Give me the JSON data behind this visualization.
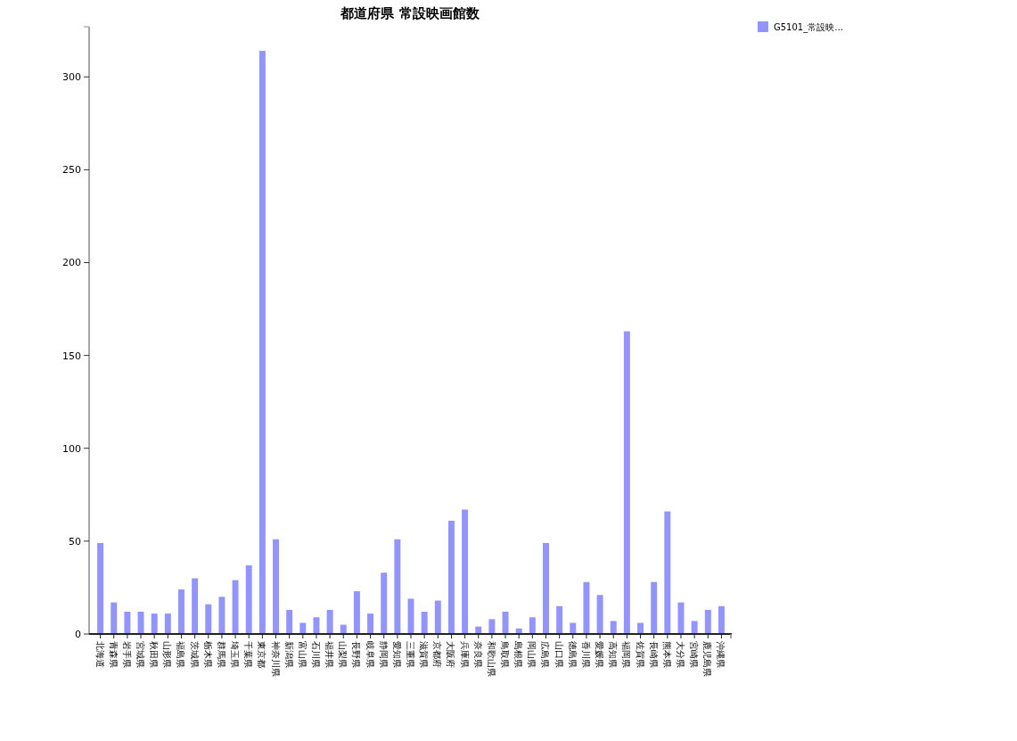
{
  "chart_data": {
    "type": "bar",
    "title": "都道府県 常設映画館数",
    "categories": [
      "北海道",
      "青森県",
      "岩手県",
      "宮城県",
      "秋田県",
      "山形県",
      "福島県",
      "茨城県",
      "栃木県",
      "群馬県",
      "埼玉県",
      "千葉県",
      "東京都",
      "神奈川県",
      "新潟県",
      "富山県",
      "石川県",
      "福井県",
      "山梨県",
      "長野県",
      "岐阜県",
      "静岡県",
      "愛知県",
      "三重県",
      "滋賀県",
      "京都府",
      "大阪府",
      "兵庫県",
      "奈良県",
      "和歌山県",
      "鳥取県",
      "島根県",
      "岡山県",
      "広島県",
      "山口県",
      "徳島県",
      "香川県",
      "愛媛県",
      "高知県",
      "福岡県",
      "佐賀県",
      "長崎県",
      "熊本県",
      "大分県",
      "宮崎県",
      "鹿児島県",
      "沖縄県"
    ],
    "series": [
      {
        "name": "G5101_常設映…",
        "color": "#9494ff",
        "values": [
          49,
          17,
          12,
          12,
          11,
          11,
          24,
          30,
          16,
          20,
          29,
          37,
          314,
          51,
          13,
          6,
          9,
          13,
          5,
          23,
          11,
          33,
          51,
          19,
          12,
          18,
          61,
          67,
          4,
          8,
          12,
          3,
          9,
          49,
          15,
          6,
          28,
          21,
          7,
          163,
          6,
          28,
          66,
          17,
          7,
          13,
          15
        ]
      }
    ],
    "ylim": [
      0,
      327
    ],
    "yticks": [
      0,
      50,
      100,
      150,
      200,
      250,
      300
    ],
    "grid": false,
    "legend": "top right"
  }
}
